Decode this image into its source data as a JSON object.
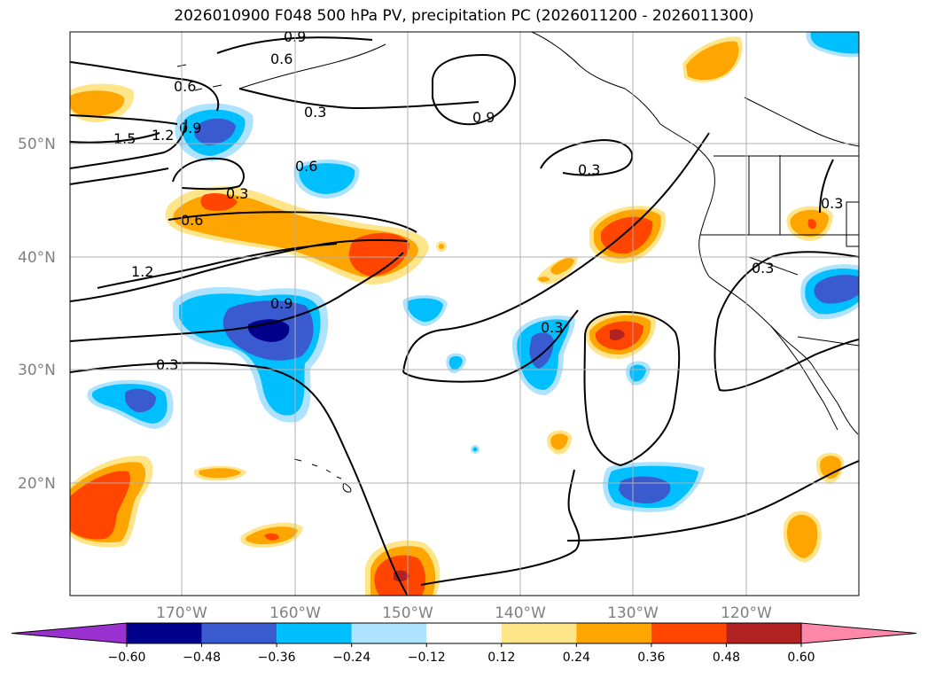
{
  "title": "2026010900 F048 500 hPa PV, precipitation PC (2026011200 - 2026011300)",
  "latitude_labels": [
    "50°N",
    "40°N",
    "30°N",
    "20°N"
  ],
  "longitude_labels": [
    "170°W",
    "160°W",
    "150°W",
    "140°W",
    "130°W",
    "120°W"
  ],
  "colorbar": {
    "tick_labels": [
      "−0.60",
      "−0.48",
      "−0.36",
      "−0.24",
      "−0.12",
      "0.12",
      "0.24",
      "0.36",
      "0.48",
      "0.60"
    ],
    "colors": [
      "#9b30d0",
      "#00008b",
      "#3a5bd0",
      "#00bfff",
      "#aee3ff",
      "#ffffff",
      "#ffe58a",
      "#ffa500",
      "#ff4500",
      "#b22222",
      "#ff88aa"
    ]
  },
  "contour_labels": [
    "0.9",
    "0.6",
    "0.6",
    "0.3",
    "0.9",
    "1.5",
    "1.2",
    "0.9",
    "0.6",
    "0.3",
    "0.3",
    "0.6",
    "1.2",
    "0.9",
    "0.3",
    "0.3",
    "0.3",
    "0.3"
  ],
  "fill_colors": {
    "light_blue": "#aee3ff",
    "blue": "#00bfff",
    "medium_blue": "#3a5bd0",
    "navy": "#00008b",
    "yellow": "#ffe58a",
    "orange": "#ffa500",
    "red_orange": "#ff4500",
    "dark_red": "#b22222"
  }
}
